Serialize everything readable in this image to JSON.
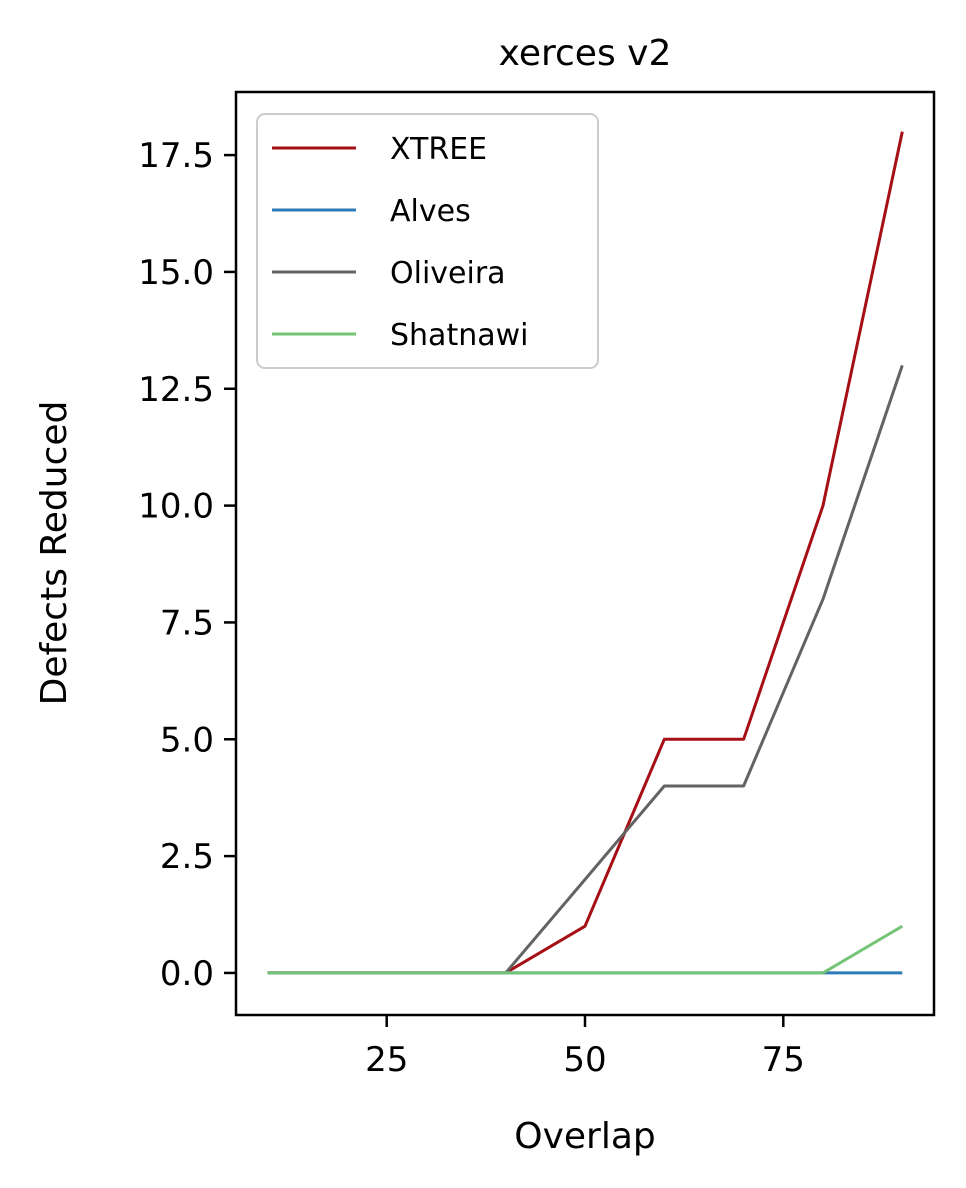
{
  "chart_data": {
    "type": "line",
    "title": "xerces v2",
    "xlabel": "Overlap",
    "ylabel": "Defects Reduced",
    "xlim": [
      6,
      94
    ],
    "ylim": [
      -0.9,
      18.85
    ],
    "xticks": [
      "25",
      "50",
      "75"
    ],
    "yticks": [
      "0.0",
      "2.5",
      "5.0",
      "7.5",
      "10.0",
      "12.5",
      "15.0",
      "17.5"
    ],
    "grid": false,
    "legend_position": "upper-left",
    "x": [
      10,
      20,
      30,
      40,
      50,
      60,
      70,
      80,
      90
    ],
    "series": [
      {
        "name": "XTREE",
        "color": "#a50f15",
        "values": [
          0,
          0,
          0,
          0,
          1,
          5,
          5,
          10,
          18
        ]
      },
      {
        "name": "Alves",
        "color": "#2c7bb6",
        "values": [
          0,
          0,
          0,
          0,
          0,
          0,
          0,
          0,
          0
        ]
      },
      {
        "name": "Oliveira",
        "color": "#636363",
        "values": [
          0,
          0,
          0,
          0,
          2,
          4,
          4,
          8,
          13
        ]
      },
      {
        "name": "Shatnawi",
        "color": "#74c476",
        "values": [
          0,
          0,
          0,
          0,
          0,
          0,
          0,
          0,
          1
        ]
      }
    ]
  }
}
